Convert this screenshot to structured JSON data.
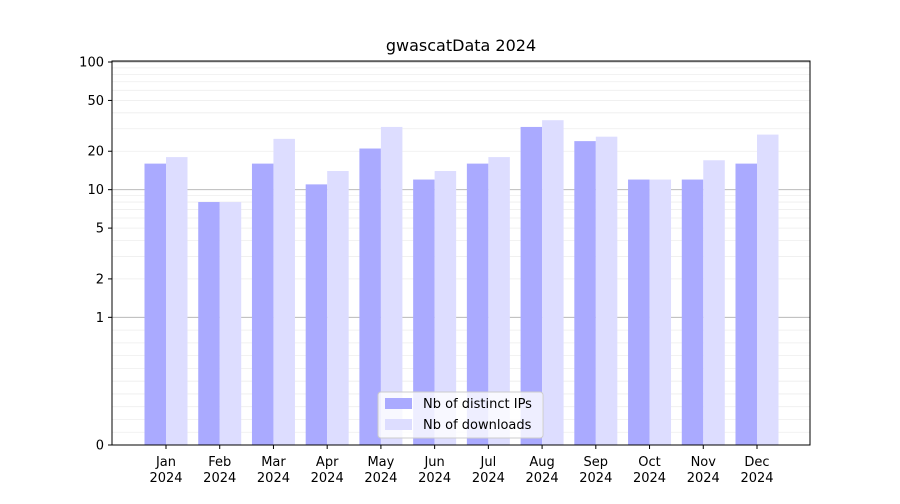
{
  "chart_data": {
    "type": "bar",
    "title": "gwascatData 2024",
    "xlabel": "",
    "ylabel": "",
    "yscale": "symlog",
    "ylim": [
      0,
      100
    ],
    "y_ticks": [
      0,
      1,
      2,
      5,
      10,
      20,
      50,
      100
    ],
    "grid": "horizontal",
    "legend_position": "bottom-center",
    "categories": [
      [
        "Jan",
        "2024"
      ],
      [
        "Feb",
        "2024"
      ],
      [
        "Mar",
        "2024"
      ],
      [
        "Apr",
        "2024"
      ],
      [
        "May",
        "2024"
      ],
      [
        "Jun",
        "2024"
      ],
      [
        "Jul",
        "2024"
      ],
      [
        "Aug",
        "2024"
      ],
      [
        "Sep",
        "2024"
      ],
      [
        "Oct",
        "2024"
      ],
      [
        "Nov",
        "2024"
      ],
      [
        "Dec",
        "2024"
      ]
    ],
    "series": [
      {
        "name": "Nb of distinct IPs",
        "color": "#aaaaff",
        "values": [
          16,
          8,
          16,
          11,
          21,
          12,
          16,
          31,
          24,
          12,
          12,
          16
        ]
      },
      {
        "name": "Nb of downloads",
        "color": "#ddddff",
        "values": [
          18,
          8,
          25,
          14,
          31,
          14,
          18,
          35,
          26,
          12,
          17,
          27
        ]
      }
    ]
  }
}
